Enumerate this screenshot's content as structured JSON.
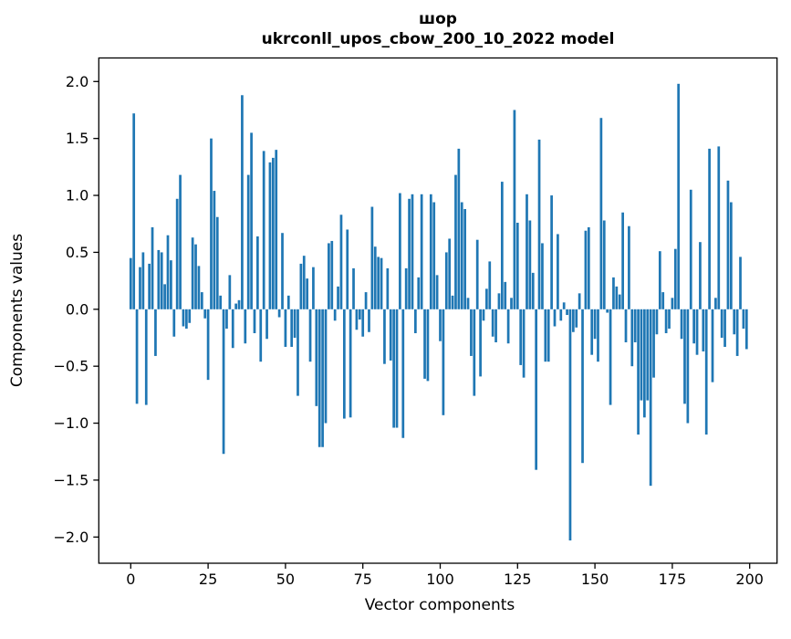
{
  "chart_data": {
    "type": "bar",
    "title": "шор",
    "subtitle": "ukrconll_upos_cbow_200_10_2022 model",
    "xlabel": "Vector components",
    "ylabel": "Components values",
    "bar_color": "#1f77b4",
    "axis_color": "#000000",
    "background_color": "#ffffff",
    "grid": false,
    "legend": null,
    "xlim": [
      -10.5,
      209.5
    ],
    "ylim": [
      -2.23,
      2.21
    ],
    "x_ticks": [
      0,
      25,
      50,
      75,
      100,
      125,
      150,
      175,
      200
    ],
    "x_tick_labels": [
      "0",
      "25",
      "50",
      "75",
      "100",
      "125",
      "150",
      "175",
      "200"
    ],
    "y_ticks": [
      2.0,
      1.5,
      1.0,
      0.5,
      0.0,
      -0.5,
      -1.0,
      -1.5,
      -2.0
    ],
    "y_tick_labels": [
      "2.0",
      "1.5",
      "1.0",
      "0.5",
      "0.0",
      "−0.5",
      "−1.0",
      "−1.5",
      "−2.0"
    ],
    "n_components": 200,
    "values": [
      0.45,
      1.72,
      -0.83,
      0.37,
      0.5,
      -0.84,
      0.4,
      0.72,
      -0.41,
      0.52,
      0.5,
      0.22,
      0.65,
      0.43,
      -0.24,
      0.97,
      1.18,
      -0.15,
      -0.17,
      -0.12,
      0.63,
      0.57,
      0.38,
      0.15,
      -0.08,
      -0.62,
      1.5,
      1.04,
      0.81,
      0.12,
      -1.27,
      -0.17,
      0.3,
      -0.34,
      0.05,
      0.08,
      1.88,
      -0.3,
      1.18,
      1.55,
      -0.21,
      0.64,
      -0.46,
      1.39,
      -0.26,
      1.29,
      1.33,
      1.4,
      -0.07,
      0.67,
      -0.33,
      0.12,
      -0.33,
      -0.25,
      -0.76,
      0.4,
      0.47,
      0.27,
      -0.46,
      0.37,
      -0.85,
      -1.21,
      -1.21,
      -1.0,
      0.58,
      0.6,
      -0.1,
      0.2,
      0.83,
      -0.96,
      0.7,
      -0.95,
      0.36,
      -0.18,
      -0.09,
      -0.24,
      0.15,
      -0.2,
      0.9,
      0.55,
      0.46,
      0.45,
      -0.48,
      0.36,
      -0.45,
      -1.04,
      -1.04,
      1.02,
      -1.13,
      0.36,
      0.97,
      1.01,
      -0.21,
      0.28,
      1.01,
      -0.61,
      -0.63,
      1.01,
      0.94,
      0.3,
      -0.28,
      -0.93,
      0.5,
      0.62,
      0.12,
      1.18,
      1.41,
      0.94,
      0.88,
      0.1,
      -0.41,
      -0.76,
      0.61,
      -0.59,
      -0.1,
      0.18,
      0.42,
      -0.24,
      -0.29,
      0.14,
      1.12,
      0.24,
      -0.3,
      0.1,
      1.75,
      0.76,
      -0.49,
      -0.6,
      1.01,
      0.78,
      0.32,
      -1.41,
      1.49,
      0.58,
      -0.46,
      -0.46,
      1.0,
      -0.15,
      0.66,
      -0.1,
      0.06,
      -0.05,
      -2.03,
      -0.2,
      -0.16,
      0.14,
      -1.35,
      0.69,
      0.72,
      -0.4,
      -0.26,
      -0.46,
      1.68,
      0.78,
      -0.03,
      -0.84,
      0.28,
      0.2,
      0.13,
      0.85,
      -0.29,
      0.73,
      -0.5,
      -0.29,
      -1.1,
      -0.8,
      -0.95,
      -0.8,
      -1.55,
      -0.6,
      -0.22,
      0.51,
      0.15,
      -0.21,
      -0.17,
      0.1,
      0.53,
      1.98,
      -0.26,
      -0.83,
      -1.0,
      1.05,
      -0.3,
      -0.4,
      0.59,
      -0.37,
      -1.1,
      1.41,
      -0.64,
      0.1,
      1.43,
      -0.25,
      -0.33,
      1.13,
      0.94,
      -0.22,
      -0.41,
      0.46,
      -0.17,
      -0.35
    ]
  }
}
